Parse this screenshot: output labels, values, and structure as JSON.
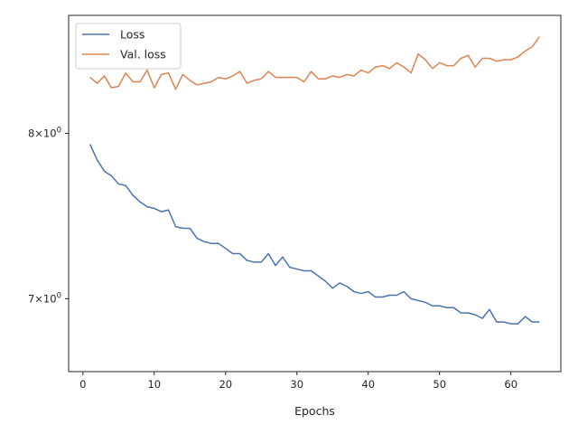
{
  "chart_data": {
    "type": "line",
    "xlabel": "Epochs",
    "ylabel": "",
    "xlim": [
      -2,
      67
    ],
    "ylim": [
      6.6,
      8.8
    ],
    "y_scale": "log",
    "x_ticks": [
      0,
      10,
      20,
      30,
      40,
      50,
      60
    ],
    "x_tick_labels": [
      "0",
      "10",
      "20",
      "30",
      "40",
      "50",
      "60"
    ],
    "y_ticks": [
      7,
      8
    ],
    "y_tick_labels": [
      {
        "base": "7",
        "times": "×",
        "mant": "10",
        "exp": "0"
      },
      {
        "base": "8",
        "times": "×",
        "mant": "10",
        "exp": "0"
      }
    ],
    "grid": false,
    "legend_position": "top-left",
    "x": [
      1,
      2,
      3,
      4,
      5,
      6,
      7,
      8,
      9,
      10,
      11,
      12,
      13,
      14,
      15,
      16,
      17,
      18,
      19,
      20,
      21,
      22,
      23,
      24,
      25,
      26,
      27,
      28,
      29,
      30,
      31,
      32,
      33,
      34,
      35,
      36,
      37,
      38,
      39,
      40,
      41,
      42,
      43,
      44,
      45,
      46,
      47,
      48,
      49,
      50,
      51,
      52,
      53,
      54,
      55,
      56,
      57,
      58,
      59,
      60,
      61,
      62,
      63,
      64
    ],
    "series": [
      {
        "name": "Loss",
        "color": "#4c72b0",
        "values": [
          7.93,
          7.83,
          7.76,
          7.73,
          7.68,
          7.67,
          7.61,
          7.57,
          7.54,
          7.53,
          7.51,
          7.52,
          7.42,
          7.41,
          7.41,
          7.35,
          7.33,
          7.32,
          7.32,
          7.29,
          7.26,
          7.26,
          7.22,
          7.21,
          7.21,
          7.26,
          7.19,
          7.24,
          7.18,
          7.17,
          7.16,
          7.16,
          7.13,
          7.1,
          7.06,
          7.09,
          7.07,
          7.04,
          7.03,
          7.04,
          7.01,
          7.01,
          7.02,
          7.02,
          7.04,
          7.0,
          6.99,
          6.98,
          6.96,
          6.96,
          6.95,
          6.95,
          6.92,
          6.92,
          6.91,
          6.89,
          6.94,
          6.87,
          6.87,
          6.86,
          6.86,
          6.9,
          6.87,
          6.87
        ]
      },
      {
        "name": "Val. loss",
        "color": "#dd8452",
        "values": [
          8.37,
          8.33,
          8.38,
          8.3,
          8.31,
          8.4,
          8.34,
          8.34,
          8.42,
          8.3,
          8.39,
          8.4,
          8.29,
          8.39,
          8.35,
          8.32,
          8.33,
          8.34,
          8.37,
          8.36,
          8.38,
          8.41,
          8.33,
          8.35,
          8.36,
          8.41,
          8.37,
          8.37,
          8.37,
          8.37,
          8.34,
          8.41,
          8.36,
          8.36,
          8.38,
          8.37,
          8.39,
          8.38,
          8.42,
          8.4,
          8.44,
          8.45,
          8.43,
          8.47,
          8.44,
          8.4,
          8.53,
          8.49,
          8.43,
          8.47,
          8.45,
          8.45,
          8.5,
          8.52,
          8.44,
          8.5,
          8.5,
          8.48,
          8.49,
          8.49,
          8.51,
          8.55,
          8.58,
          8.65
        ]
      }
    ]
  }
}
